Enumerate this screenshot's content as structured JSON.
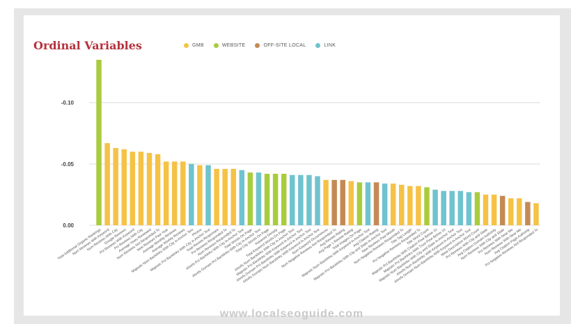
{
  "title": "Ordinal Variables",
  "legend": [
    {
      "label": "GMB",
      "color": "#f6c245"
    },
    {
      "label": "WEBSITE",
      "color": "#a9cc3e"
    },
    {
      "label": "OFF-SITE LOCAL",
      "color": "#c48a55"
    },
    {
      "label": "LINK",
      "color": "#6fc3ce"
    }
  ],
  "watermark": "www.localseoguide.com",
  "chart_data": {
    "type": "bar",
    "ylim": [
      0,
      -0.135
    ],
    "y_ticks": [
      -0.1,
      -0.05,
      0.0
    ],
    "y_tick_labels": [
      "-0.10",
      "-0.05",
      "0.00"
    ],
    "grid": true,
    "legend_placement": "top",
    "categories": [
      "Total Additional Organic Rankings",
      "Num Reviews With Keyword",
      "Num Reviews With City",
      "Google Reviews",
      "Pct Reviews With Keyword",
      "Pct Reviews With City",
      "Average Years Reviewed",
      "Num Reviews Not Responded To",
      "New Reviews Past Year",
      "Average Monthly Reviews",
      "Average Weekly Reviews",
      "Majestic Num Backlinks With City in Anchor Text",
      "Photos",
      "Majestic Pct Backlinks With City in Anchor Text",
      "Total Review Responses",
      "Pct Reviews Responded To",
      "Num Reviews Responded To",
      "Ahrefs Pct Backlinks With City In Anchor Text",
      "Total Words On Page",
      "Ahrefs Domain Pct Backlinks With City In Anchor Text",
      "Total City Words On Page",
      "Keyword Density",
      "Total Keyword Words On Page",
      "Ahrefs Num Backlinks With City in Anchor Text",
      "Majestic Pct Backlinks With Keyword In Anchor Text",
      "Ahrefs Domain Pct Backlinks With Keyword In Anchor Text",
      "Ahrefs Domain Num Backlinks With Keyword In Anchor Text",
      "Num Keyword Occurrences",
      "Num Negative Reviews Not Responded To",
      "Avg Review Rating",
      "Avg Page 1 Review Rating",
      "Total Images On Page",
      "Majestic Num Backlinks With Keyword In Anchor Text",
      "Avg Citation Rating",
      "Majestic Pct Backlinks With City and State In Anchor Text",
      "New Reviews Past Month",
      "Num Negative Reviews Responded To",
      "Title Tag Length",
      "Pct Negative Reviews Responded To",
      "Title Word Count",
      "Majestic Pct Backlinks With Citation Flow Below 10",
      "Majestic Pct Backlinks With Trust Flow Below 10",
      "Majestic Num Backlinks With City and State In Anchor Text",
      "Ahrefs Num Backlinks With Keyword In Anchor Text",
      "Ahrefs Domain Num Backlinks With Keyword In Anchor Text",
      "Meta Description Word Count",
      "Pct Reviews With City and State",
      "Avg Citation Domain Authority",
      "Num Reviews With City and State",
      "Pct Reviews With Near Me",
      "Num Reviews With Near Me",
      "Avg Citation Page Authority",
      "Pct Negative Reviews Not Responded To"
    ],
    "values": [
      -0.135,
      -0.067,
      -0.063,
      -0.062,
      -0.06,
      -0.06,
      -0.059,
      -0.058,
      -0.052,
      -0.052,
      -0.052,
      -0.05,
      -0.049,
      -0.049,
      -0.046,
      -0.046,
      -0.046,
      -0.045,
      -0.043,
      -0.043,
      -0.042,
      -0.042,
      -0.042,
      -0.041,
      -0.041,
      -0.041,
      -0.04,
      -0.037,
      -0.037,
      -0.037,
      -0.036,
      -0.035,
      -0.035,
      -0.035,
      -0.034,
      -0.034,
      -0.033,
      -0.032,
      -0.032,
      -0.031,
      -0.029,
      -0.028,
      -0.028,
      -0.028,
      -0.027,
      -0.027,
      -0.025,
      -0.025,
      -0.024,
      -0.022,
      -0.022,
      -0.019,
      -0.018
    ],
    "groups": [
      "WEBSITE",
      "GMB",
      "GMB",
      "GMB",
      "GMB",
      "GMB",
      "GMB",
      "GMB",
      "GMB",
      "GMB",
      "GMB",
      "LINK",
      "GMB",
      "LINK",
      "GMB",
      "GMB",
      "GMB",
      "LINK",
      "WEBSITE",
      "LINK",
      "WEBSITE",
      "WEBSITE",
      "WEBSITE",
      "LINK",
      "LINK",
      "LINK",
      "LINK",
      "GMB",
      "OFF-SITE LOCAL",
      "OFF-SITE LOCAL",
      "GMB",
      "WEBSITE",
      "LINK",
      "OFF-SITE LOCAL",
      "LINK",
      "GMB",
      "GMB",
      "GMB",
      "GMB",
      "WEBSITE",
      "LINK",
      "LINK",
      "LINK",
      "LINK",
      "LINK",
      "WEBSITE",
      "GMB",
      "GMB",
      "OFF-SITE LOCAL",
      "GMB",
      "GMB",
      "OFF-SITE LOCAL",
      "GMB"
    ]
  }
}
